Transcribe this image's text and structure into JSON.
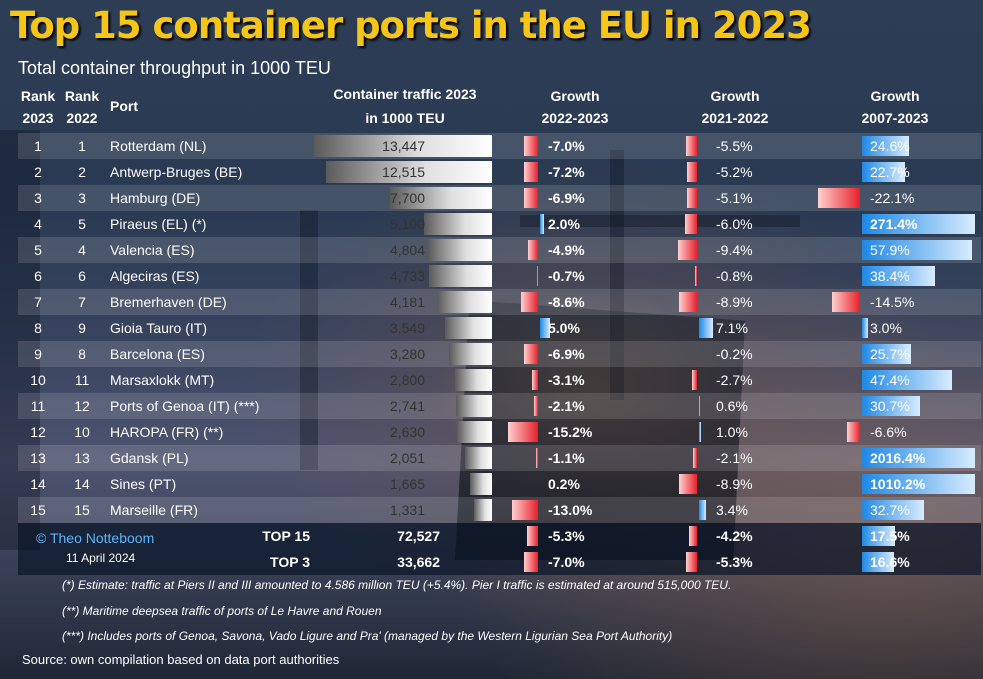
{
  "title": "Top 15 container ports in the EU in 2023",
  "subtitle": "Total container throughput in 1000 TEU",
  "headers": {
    "rank2023_a": "Rank",
    "rank2023_b": "2023",
    "rank2022_a": "Rank",
    "rank2022_b": "2022",
    "port": "Port",
    "traffic_a": "Container traffic 2023",
    "traffic_b": "in 1000 TEU",
    "g1_a": "Growth",
    "g1_b": "2022-2023",
    "g2_a": "Growth",
    "g2_b": "2021-2022",
    "g3_a": "Growth",
    "g3_b": "2007-2023"
  },
  "colors": {
    "title": "#f5c518",
    "negative": "#e8202a",
    "positive": "#1e88e5",
    "traffic_bar": "#e0e0e0",
    "credit": "#5bb5ff"
  },
  "chart_data": {
    "type": "table",
    "columns": [
      "Rank 2023",
      "Rank 2022",
      "Port",
      "Container traffic 2023 in 1000 TEU",
      "Growth 2022-2023",
      "Growth 2021-2022",
      "Growth 2007-2023"
    ],
    "rows": [
      {
        "rank2023": "1",
        "rank2022": "1",
        "port": "Rotterdam (NL)",
        "traffic_label": "13,447",
        "traffic": 13447,
        "g1_label": "-7.0%",
        "g1": -7.0,
        "g2_label": "-5.5%",
        "g2": -5.5,
        "g3_label": "24.6%",
        "g3": 24.6
      },
      {
        "rank2023": "2",
        "rank2022": "2",
        "port": "Antwerp-Bruges (BE)",
        "traffic_label": "12,515",
        "traffic": 12515,
        "g1_label": "-7.2%",
        "g1": -7.2,
        "g2_label": "-5.2%",
        "g2": -5.2,
        "g3_label": "22.7%",
        "g3": 22.7
      },
      {
        "rank2023": "3",
        "rank2022": "3",
        "port": "Hamburg (DE)",
        "traffic_label": "7,700",
        "traffic": 7700,
        "g1_label": "-6.9%",
        "g1": -6.9,
        "g2_label": "-5.1%",
        "g2": -5.1,
        "g3_label": "-22.1%",
        "g3": -22.1
      },
      {
        "rank2023": "4",
        "rank2022": "5",
        "port": "Piraeus (EL) (*)",
        "traffic_label": "5,100",
        "traffic": 5100,
        "g1_label": "2.0%",
        "g1": 2.0,
        "g2_label": "-6.0%",
        "g2": -6.0,
        "g3_label": "271.4%",
        "g3": 271.4
      },
      {
        "rank2023": "5",
        "rank2022": "4",
        "port": "Valencia (ES)",
        "traffic_label": "4,804",
        "traffic": 4804,
        "g1_label": "-4.9%",
        "g1": -4.9,
        "g2_label": "-9.4%",
        "g2": -9.4,
        "g3_label": "57.9%",
        "g3": 57.9
      },
      {
        "rank2023": "6",
        "rank2022": "6",
        "port": "Algeciras (ES)",
        "traffic_label": "4,733",
        "traffic": 4733,
        "g1_label": "-0.7%",
        "g1": -0.7,
        "g2_label": "-0.8%",
        "g2": -0.8,
        "g3_label": "38.4%",
        "g3": 38.4
      },
      {
        "rank2023": "7",
        "rank2022": "7",
        "port": "Bremerhaven (DE)",
        "traffic_label": "4,181",
        "traffic": 4181,
        "g1_label": "-8.6%",
        "g1": -8.6,
        "g2_label": "-8.9%",
        "g2": -8.9,
        "g3_label": "-14.5%",
        "g3": -14.5
      },
      {
        "rank2023": "8",
        "rank2022": "9",
        "port": "Gioia Tauro (IT)",
        "traffic_label": "3,549",
        "traffic": 3549,
        "g1_label": "5.0%",
        "g1": 5.0,
        "g2_label": "7.1%",
        "g2": 7.1,
        "g3_label": "3.0%",
        "g3": 3.0
      },
      {
        "rank2023": "9",
        "rank2022": "8",
        "port": "Barcelona (ES)",
        "traffic_label": "3,280",
        "traffic": 3280,
        "g1_label": "-6.9%",
        "g1": -6.9,
        "g2_label": "-0.2%",
        "g2": -0.2,
        "g3_label": "25.7%",
        "g3": 25.7
      },
      {
        "rank2023": "10",
        "rank2022": "11",
        "port": "Marsaxlokk (MT)",
        "traffic_label": "2,800",
        "traffic": 2800,
        "g1_label": "-3.1%",
        "g1": -3.1,
        "g2_label": "-2.7%",
        "g2": -2.7,
        "g3_label": "47.4%",
        "g3": 47.4
      },
      {
        "rank2023": "11",
        "rank2022": "12",
        "port": "Ports of Genoa (IT) (***)",
        "traffic_label": "2,741",
        "traffic": 2741,
        "g1_label": "-2.1%",
        "g1": -2.1,
        "g2_label": "0.6%",
        "g2": 0.6,
        "g3_label": "30.7%",
        "g3": 30.7
      },
      {
        "rank2023": "12",
        "rank2022": "10",
        "port": "HAROPA (FR) (**)",
        "traffic_label": "2,630",
        "traffic": 2630,
        "g1_label": "-15.2%",
        "g1": -15.2,
        "g2_label": "1.0%",
        "g2": 1.0,
        "g3_label": "-6.6%",
        "g3": -6.6
      },
      {
        "rank2023": "13",
        "rank2022": "13",
        "port": "Gdansk (PL)",
        "traffic_label": "2,051",
        "traffic": 2051,
        "g1_label": "-1.1%",
        "g1": -1.1,
        "g2_label": "-2.1%",
        "g2": -2.1,
        "g3_label": "2016.4%",
        "g3": 2016.4
      },
      {
        "rank2023": "14",
        "rank2022": "14",
        "port": "Sines (PT)",
        "traffic_label": "1,665",
        "traffic": 1665,
        "g1_label": "0.2%",
        "g1": 0.2,
        "g2_label": "-8.9%",
        "g2": -8.9,
        "g3_label": "1010.2%",
        "g3": 1010.2
      },
      {
        "rank2023": "15",
        "rank2022": "15",
        "port": "Marseille (FR)",
        "traffic_label": "1,331",
        "traffic": 1331,
        "g1_label": "-13.0%",
        "g1": -13.0,
        "g2_label": "3.4%",
        "g2": 3.4,
        "g3_label": "32.7%",
        "g3": 32.7
      }
    ],
    "totals": [
      {
        "label": "TOP 15",
        "traffic_label": "72,527",
        "traffic": 72527,
        "g1_label": "-5.3%",
        "g1": -5.3,
        "g2_label": "-4.2%",
        "g2": -4.2,
        "g3_label": "17.5%",
        "g3": 17.5
      },
      {
        "label": "TOP 3",
        "traffic_label": "33,662",
        "traffic": 33662,
        "g1_label": "-7.0%",
        "g1": -7.0,
        "g2_label": "-5.3%",
        "g2": -5.3,
        "g3_label": "16.6%",
        "g3": 16.6
      }
    ]
  },
  "credit": "© Theo Notteboom",
  "date": "11 April 2024",
  "notes": [
    "(*) Estimate: traffic at Piers II and III amounted to 4.586 million TEU (+5.4%). Pier I traffic is estimated at around 515,000 TEU.",
    "(**) Maritime deepsea traffic of ports of Le Havre and Rouen",
    "(***) Includes ports of Genoa, Savona, Vado Ligure and Pra' (managed by the Western Ligurian Sea Port Authority)"
  ],
  "source": "Source: own compilation based on data port authorities"
}
